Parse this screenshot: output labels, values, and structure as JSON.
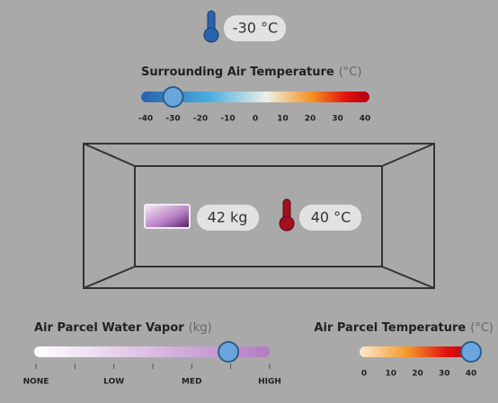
{
  "readout": {
    "surrounding_temperature": "-30 °C"
  },
  "surrounding_slider": {
    "title": "Surrounding Air Temperature",
    "unit": "(°C)",
    "ticks": [
      -40,
      -30,
      -20,
      -10,
      0,
      10,
      20,
      30,
      40
    ],
    "value": -30
  },
  "parcel": {
    "water_vapor": "42 kg",
    "temperature": "40 °C"
  },
  "water_vapor_slider": {
    "title": "Air Parcel Water Vapor",
    "unit": "(kg)",
    "ticks": [
      {
        "value": 0,
        "label": "NONE"
      },
      {
        "value": 17,
        "label": "LOW"
      },
      {
        "value": 34,
        "label": "MED"
      },
      {
        "value": 51,
        "label": "HIGH"
      }
    ],
    "value": 42
  },
  "parcel_temperature_slider": {
    "title": "Air Parcel Temperature",
    "unit": "(°C)",
    "ticks": [
      0,
      10,
      20,
      30,
      40
    ],
    "value": 40
  }
}
